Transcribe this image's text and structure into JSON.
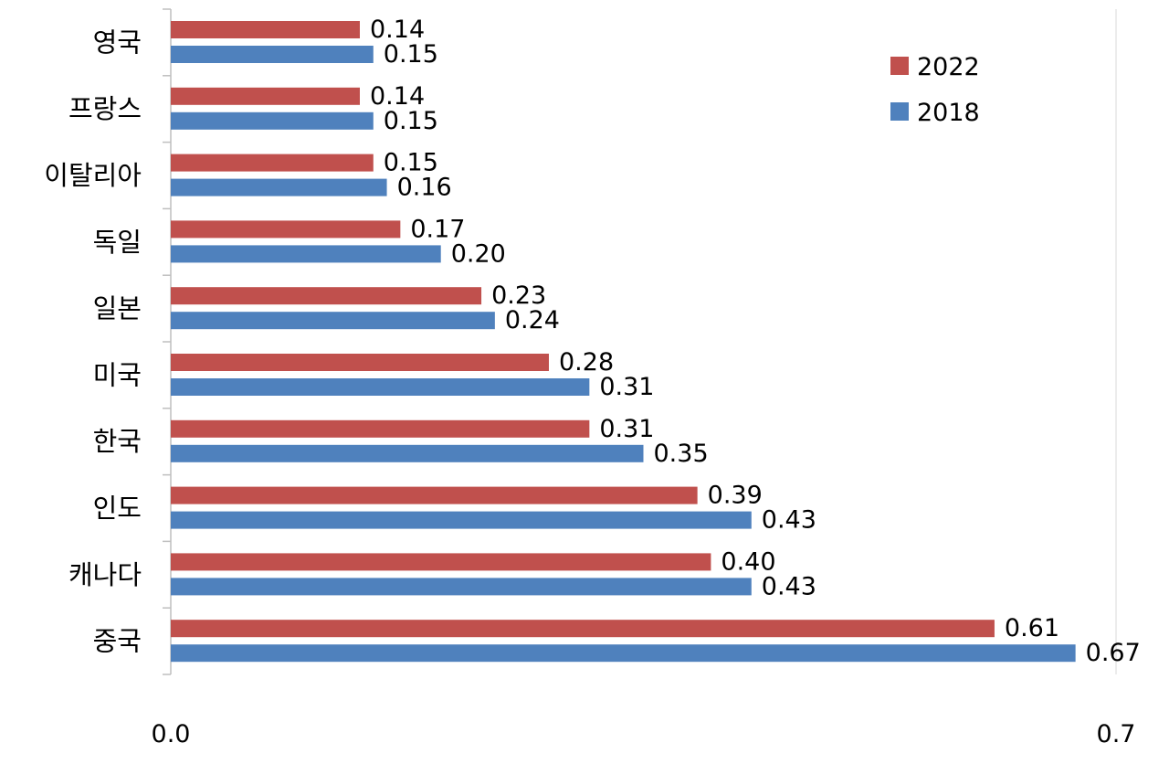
{
  "chart_data": {
    "type": "bar",
    "orientation": "horizontal",
    "categories": [
      "영국",
      "프랑스",
      "이탈리아",
      "독일",
      "일본",
      "미국",
      "한국",
      "인도",
      "캐나다",
      "중국"
    ],
    "series": [
      {
        "name": "2022",
        "color": "#c0504d",
        "values": [
          0.14,
          0.14,
          0.15,
          0.17,
          0.23,
          0.28,
          0.31,
          0.39,
          0.4,
          0.61
        ],
        "labels": [
          "0.14",
          "0.14",
          "0.15",
          "0.17",
          "0.23",
          "0.28",
          "0.31",
          "0.39",
          "0.40",
          "0.61"
        ]
      },
      {
        "name": "2018",
        "color": "#4f81bd",
        "values": [
          0.15,
          0.15,
          0.16,
          0.2,
          0.24,
          0.31,
          0.35,
          0.43,
          0.43,
          0.67
        ],
        "labels": [
          "0.15",
          "0.15",
          "0.16",
          "0.20",
          "0.24",
          "0.31",
          "0.35",
          "0.43",
          "0.43",
          "0.67"
        ]
      }
    ],
    "xlim": [
      0,
      0.7
    ],
    "x_ticks": [
      "0.0",
      "0.7"
    ],
    "legend_position": "top-right",
    "grid": false
  }
}
